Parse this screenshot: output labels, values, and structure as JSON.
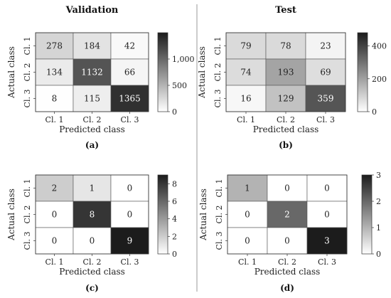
{
  "chart_data": [
    {
      "type": "heatmap",
      "title": "Validation",
      "caption": "(a)",
      "xlabel": "Predicted class",
      "ylabel": "Actual class",
      "x_categories": [
        "Cl. 1",
        "Cl. 2",
        "Cl. 3"
      ],
      "y_categories": [
        "Cl. 1",
        "Cl. 2",
        "Cl. 3"
      ],
      "values": [
        [
          278,
          184,
          42
        ],
        [
          134,
          1132,
          66
        ],
        [
          8,
          115,
          1365
        ]
      ],
      "colorbar": {
        "range": [
          0,
          1500
        ],
        "ticks": [
          0,
          500,
          1000
        ],
        "tick_labels": [
          "0",
          "500",
          "1,000"
        ]
      }
    },
    {
      "type": "heatmap",
      "title": "Test",
      "caption": "(b)",
      "xlabel": "Predicted class",
      "ylabel": "Actual class",
      "x_categories": [
        "Cl. 1",
        "Cl. 2",
        "Cl. 3"
      ],
      "y_categories": [
        "Cl. 1",
        "Cl. 2",
        "Cl. 3"
      ],
      "values": [
        [
          79,
          78,
          23
        ],
        [
          74,
          193,
          69
        ],
        [
          16,
          129,
          359
        ]
      ],
      "colorbar": {
        "range": [
          0,
          480
        ],
        "ticks": [
          0,
          200,
          400
        ],
        "tick_labels": [
          "0",
          "200",
          "400"
        ]
      }
    },
    {
      "type": "heatmap",
      "title": "",
      "caption": "(c)",
      "xlabel": "Predicted class",
      "ylabel": "Actual class",
      "x_categories": [
        "Cl. 1",
        "Cl. 2",
        "Cl. 3"
      ],
      "y_categories": [
        "Cl. 1",
        "Cl. 2",
        "Cl. 3"
      ],
      "values": [
        [
          2,
          1,
          0
        ],
        [
          0,
          8,
          0
        ],
        [
          0,
          0,
          9
        ]
      ],
      "colorbar": {
        "range": [
          0,
          9
        ],
        "ticks": [
          0,
          2,
          4,
          6,
          8
        ],
        "tick_labels": [
          "0",
          "2",
          "4",
          "6",
          "8"
        ]
      }
    },
    {
      "type": "heatmap",
      "title": "",
      "caption": "(d)",
      "xlabel": "Predicted class",
      "ylabel": "Actual class",
      "x_categories": [
        "Cl. 1",
        "Cl. 2",
        "Cl. 3"
      ],
      "y_categories": [
        "Cl. 1",
        "Cl. 2",
        "Cl. 3"
      ],
      "values": [
        [
          1,
          0,
          0
        ],
        [
          0,
          2,
          0
        ],
        [
          0,
          0,
          3
        ]
      ],
      "colorbar": {
        "range": [
          0,
          3
        ],
        "ticks": [
          0,
          1,
          2,
          3
        ],
        "tick_labels": [
          "0",
          "1",
          "2",
          "3"
        ]
      }
    }
  ]
}
